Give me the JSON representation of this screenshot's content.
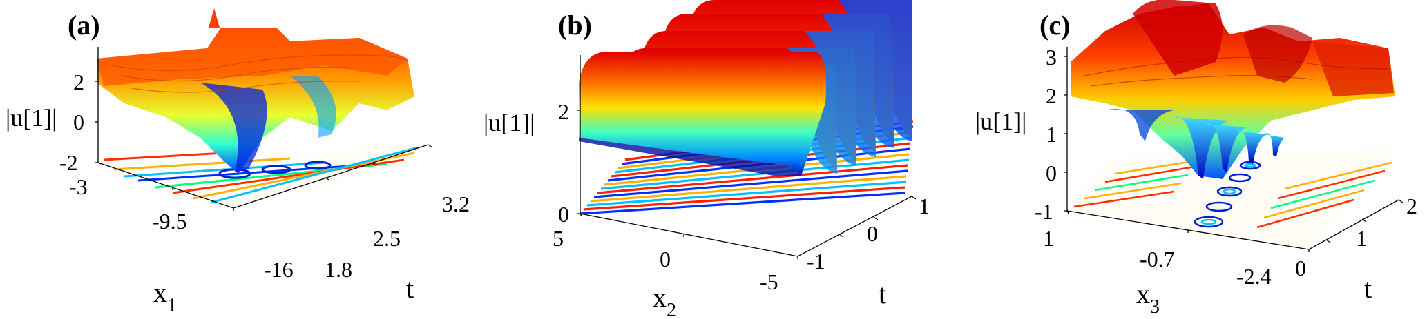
{
  "chart_data": [
    {
      "type": "surface3d",
      "panel_label": "(a)",
      "zlabel": "|u[1]|",
      "xlabel": "x",
      "xlabel_sub": "1",
      "ylabel": "t",
      "x_ticks": [
        "-3",
        "-9.5",
        "-16"
      ],
      "y_ticks": [
        "1.8",
        "2.5",
        "3.2"
      ],
      "z_ticks": [
        "-2",
        "0",
        "2"
      ],
      "xlim": [
        -16,
        -3
      ],
      "ylim": [
        1.8,
        3.2
      ],
      "zlim": [
        -2,
        3.5
      ],
      "has_contour_projection": true
    },
    {
      "type": "surface3d",
      "panel_label": "(b)",
      "zlabel": "|u[1]|",
      "xlabel": "x",
      "xlabel_sub": "2",
      "ylabel": "t",
      "x_ticks": [
        "5",
        "0",
        "-5"
      ],
      "y_ticks": [
        "-1",
        "0",
        "1"
      ],
      "z_ticks": [
        "0",
        "2"
      ],
      "xlim": [
        -5,
        5
      ],
      "ylim": [
        -1,
        1
      ],
      "zlim": [
        0,
        3.5
      ],
      "has_contour_projection": true
    },
    {
      "type": "surface3d",
      "panel_label": "(c)",
      "zlabel": "|u[1]|",
      "xlabel": "x",
      "xlabel_sub": "3",
      "ylabel": "t",
      "x_ticks": [
        "1",
        "-0.7",
        "-2.4"
      ],
      "y_ticks": [
        "0",
        "1",
        "2"
      ],
      "z_ticks": [
        "-1",
        "0",
        "1",
        "2",
        "3"
      ],
      "xlim": [
        -2.4,
        1
      ],
      "ylim": [
        0,
        2
      ],
      "zlim": [
        -1,
        3
      ],
      "has_contour_projection": true
    }
  ],
  "colormap": [
    "#00007f",
    "#0000ff",
    "#007fff",
    "#00ffff",
    "#7fff7f",
    "#ffff00",
    "#ff7f00",
    "#ff0000",
    "#7f0000"
  ]
}
